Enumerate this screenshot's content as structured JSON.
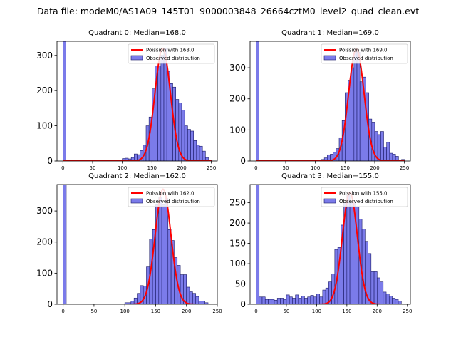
{
  "figure_title": "Data file: modeM0/AS1A09_145T01_9000003848_26664cztM0_level2_quad_clean.evt",
  "colors": {
    "bar_fill": "#7b7bea",
    "bar_edge": "#1a1a66",
    "curve": "#ff0000"
  },
  "chart_data": [
    {
      "type": "bar",
      "title": "Quadrant 0: Median=168.0",
      "median": 168.0,
      "legend": [
        "Poission with 168.0",
        "Observed distribution"
      ],
      "legend_position": "top-right",
      "xlim": [
        -10,
        260
      ],
      "ylim": [
        0,
        340
      ],
      "xticks": [
        0,
        50,
        100,
        150,
        200,
        250
      ],
      "yticks": [
        0,
        100,
        200,
        300
      ],
      "bin_width": 5,
      "bins": [
        {
          "x": 0,
          "value": 340
        },
        {
          "x": 100,
          "value": 7
        },
        {
          "x": 105,
          "value": 8
        },
        {
          "x": 110,
          "value": 6
        },
        {
          "x": 115,
          "value": 10
        },
        {
          "x": 120,
          "value": 20
        },
        {
          "x": 125,
          "value": 18
        },
        {
          "x": 130,
          "value": 30
        },
        {
          "x": 135,
          "value": 45
        },
        {
          "x": 140,
          "value": 100
        },
        {
          "x": 145,
          "value": 125
        },
        {
          "x": 150,
          "value": 205
        },
        {
          "x": 155,
          "value": 270
        },
        {
          "x": 160,
          "value": 270
        },
        {
          "x": 165,
          "value": 300
        },
        {
          "x": 170,
          "value": 320
        },
        {
          "x": 175,
          "value": 255
        },
        {
          "x": 180,
          "value": 220
        },
        {
          "x": 185,
          "value": 210
        },
        {
          "x": 190,
          "value": 175
        },
        {
          "x": 195,
          "value": 165
        },
        {
          "x": 200,
          "value": 145
        },
        {
          "x": 205,
          "value": 100
        },
        {
          "x": 210,
          "value": 90
        },
        {
          "x": 215,
          "value": 85
        },
        {
          "x": 220,
          "value": 58
        },
        {
          "x": 225,
          "value": 45
        },
        {
          "x": 230,
          "value": 42
        },
        {
          "x": 235,
          "value": 28
        },
        {
          "x": 240,
          "value": 10
        },
        {
          "x": 245,
          "value": 3
        }
      ],
      "poisson_curve": {
        "mean": 168.0,
        "peak": 320,
        "range": [
          0,
          250
        ]
      }
    },
    {
      "type": "bar",
      "title": "Quadrant 1: Median=169.0",
      "median": 169.0,
      "legend": [
        "Poission with 169.0",
        "Observed distribution"
      ],
      "legend_position": "top-right",
      "xlim": [
        -10,
        260
      ],
      "ylim": [
        0,
        385
      ],
      "xticks": [
        0,
        50,
        100,
        150,
        200,
        250
      ],
      "yticks": [
        0,
        100,
        200,
        300
      ],
      "bin_width": 5,
      "bins": [
        {
          "x": 0,
          "value": 385
        },
        {
          "x": 85,
          "value": 3
        },
        {
          "x": 110,
          "value": 5
        },
        {
          "x": 115,
          "value": 10
        },
        {
          "x": 120,
          "value": 20
        },
        {
          "x": 125,
          "value": 22
        },
        {
          "x": 130,
          "value": 28
        },
        {
          "x": 135,
          "value": 40
        },
        {
          "x": 140,
          "value": 75
        },
        {
          "x": 145,
          "value": 130
        },
        {
          "x": 150,
          "value": 220
        },
        {
          "x": 155,
          "value": 260
        },
        {
          "x": 160,
          "value": 300
        },
        {
          "x": 165,
          "value": 355
        },
        {
          "x": 170,
          "value": 350
        },
        {
          "x": 175,
          "value": 255
        },
        {
          "x": 180,
          "value": 270
        },
        {
          "x": 185,
          "value": 220
        },
        {
          "x": 190,
          "value": 135
        },
        {
          "x": 195,
          "value": 125
        },
        {
          "x": 200,
          "value": 95
        },
        {
          "x": 205,
          "value": 85
        },
        {
          "x": 210,
          "value": 95
        },
        {
          "x": 215,
          "value": 45
        },
        {
          "x": 220,
          "value": 60
        },
        {
          "x": 225,
          "value": 25
        },
        {
          "x": 230,
          "value": 22
        },
        {
          "x": 235,
          "value": 15
        },
        {
          "x": 245,
          "value": 5
        }
      ],
      "poisson_curve": {
        "mean": 169.0,
        "peak": 360,
        "range": [
          0,
          250
        ]
      }
    },
    {
      "type": "bar",
      "title": "Quadrant 2: Median=162.0",
      "median": 162.0,
      "legend": [
        "Poission with 162.0",
        "Observed distribution"
      ],
      "legend_position": "top-right",
      "xlim": [
        -10,
        250
      ],
      "ylim": [
        0,
        385
      ],
      "xticks": [
        0,
        50,
        100,
        150,
        200,
        250
      ],
      "yticks": [
        0,
        100,
        200,
        300
      ],
      "bin_width": 5,
      "bins": [
        {
          "x": 0,
          "value": 385
        },
        {
          "x": 100,
          "value": 5
        },
        {
          "x": 105,
          "value": 5
        },
        {
          "x": 110,
          "value": 10
        },
        {
          "x": 115,
          "value": 20
        },
        {
          "x": 120,
          "value": 35
        },
        {
          "x": 125,
          "value": 60
        },
        {
          "x": 130,
          "value": 58
        },
        {
          "x": 135,
          "value": 120
        },
        {
          "x": 140,
          "value": 210
        },
        {
          "x": 145,
          "value": 240
        },
        {
          "x": 150,
          "value": 320
        },
        {
          "x": 155,
          "value": 345
        },
        {
          "x": 160,
          "value": 320
        },
        {
          "x": 165,
          "value": 340
        },
        {
          "x": 170,
          "value": 240
        },
        {
          "x": 175,
          "value": 205
        },
        {
          "x": 180,
          "value": 150
        },
        {
          "x": 185,
          "value": 125
        },
        {
          "x": 190,
          "value": 95
        },
        {
          "x": 195,
          "value": 95
        },
        {
          "x": 200,
          "value": 55
        },
        {
          "x": 205,
          "value": 40
        },
        {
          "x": 210,
          "value": 35
        },
        {
          "x": 215,
          "value": 25
        },
        {
          "x": 220,
          "value": 10
        },
        {
          "x": 225,
          "value": 10
        },
        {
          "x": 230,
          "value": 5
        }
      ],
      "poisson_curve": {
        "mean": 162.0,
        "peak": 370,
        "range": [
          0,
          245
        ]
      }
    },
    {
      "type": "bar",
      "title": "Quadrant 3: Median=155.0",
      "median": 155.0,
      "legend": [
        "Poission with 155.0",
        "Observed distribution"
      ],
      "legend_position": "top-right",
      "xlim": [
        -10,
        255
      ],
      "ylim": [
        0,
        295
      ],
      "xticks": [
        0,
        50,
        100,
        150,
        200,
        250
      ],
      "yticks": [
        0,
        50,
        100,
        150,
        200,
        250
      ],
      "bin_width": 5,
      "bins": [
        {
          "x": 0,
          "value": 295
        },
        {
          "x": 5,
          "value": 18
        },
        {
          "x": 10,
          "value": 18
        },
        {
          "x": 15,
          "value": 12
        },
        {
          "x": 20,
          "value": 12
        },
        {
          "x": 25,
          "value": 12
        },
        {
          "x": 30,
          "value": 10
        },
        {
          "x": 35,
          "value": 15
        },
        {
          "x": 40,
          "value": 15
        },
        {
          "x": 45,
          "value": 12
        },
        {
          "x": 50,
          "value": 23
        },
        {
          "x": 55,
          "value": 18
        },
        {
          "x": 60,
          "value": 15
        },
        {
          "x": 65,
          "value": 23
        },
        {
          "x": 70,
          "value": 15
        },
        {
          "x": 75,
          "value": 20
        },
        {
          "x": 80,
          "value": 15
        },
        {
          "x": 85,
          "value": 18
        },
        {
          "x": 90,
          "value": 22
        },
        {
          "x": 95,
          "value": 18
        },
        {
          "x": 100,
          "value": 25
        },
        {
          "x": 105,
          "value": 18
        },
        {
          "x": 110,
          "value": 35
        },
        {
          "x": 115,
          "value": 40
        },
        {
          "x": 120,
          "value": 55
        },
        {
          "x": 125,
          "value": 75
        },
        {
          "x": 130,
          "value": 135
        },
        {
          "x": 135,
          "value": 140
        },
        {
          "x": 140,
          "value": 195
        },
        {
          "x": 145,
          "value": 250
        },
        {
          "x": 150,
          "value": 270
        },
        {
          "x": 155,
          "value": 250
        },
        {
          "x": 160,
          "value": 250
        },
        {
          "x": 165,
          "value": 240
        },
        {
          "x": 170,
          "value": 210
        },
        {
          "x": 175,
          "value": 185
        },
        {
          "x": 180,
          "value": 155
        },
        {
          "x": 185,
          "value": 125
        },
        {
          "x": 190,
          "value": 80
        },
        {
          "x": 195,
          "value": 80
        },
        {
          "x": 200,
          "value": 65
        },
        {
          "x": 205,
          "value": 55
        },
        {
          "x": 210,
          "value": 30
        },
        {
          "x": 215,
          "value": 25
        },
        {
          "x": 220,
          "value": 20
        },
        {
          "x": 225,
          "value": 15
        },
        {
          "x": 230,
          "value": 12
        },
        {
          "x": 235,
          "value": 8
        }
      ],
      "poisson_curve": {
        "mean": 155.0,
        "peak": 275,
        "range": [
          0,
          245
        ]
      }
    }
  ]
}
